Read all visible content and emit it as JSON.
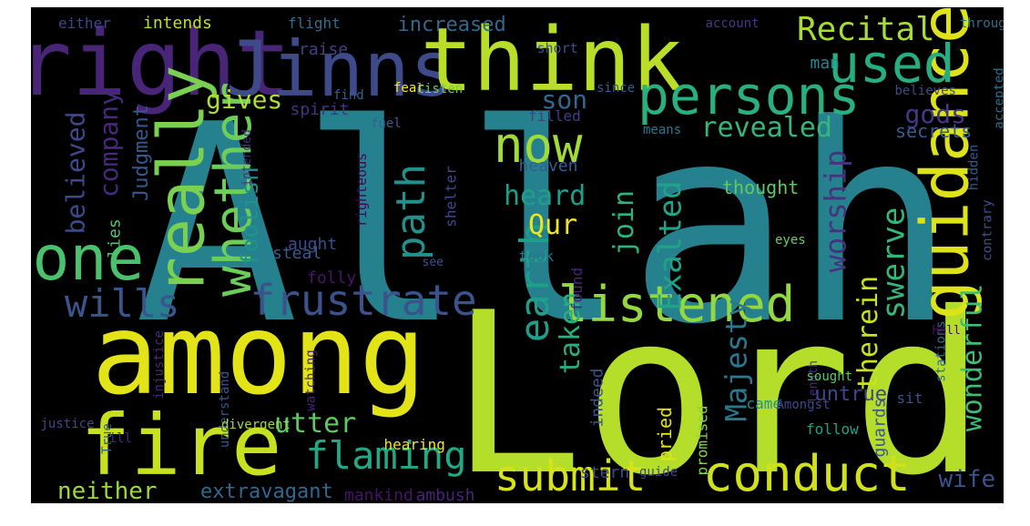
{
  "cloud": {
    "background": "#000000",
    "words": [
      {
        "text": "Allah",
        "color": "#26818e"
      },
      {
        "text": "Lord",
        "color": "#b5de2b"
      },
      {
        "text": "among",
        "color": "#e2e418"
      },
      {
        "text": "right",
        "color": "#482576"
      },
      {
        "text": "Jinns",
        "color": "#3e4a89"
      },
      {
        "text": "think",
        "color": "#b8de29"
      },
      {
        "text": "fire",
        "color": "#c7e020"
      },
      {
        "text": "guidance",
        "color": "#dde318"
      },
      {
        "text": "persons",
        "color": "#2ab07f"
      },
      {
        "text": "used",
        "color": "#26ad81"
      },
      {
        "text": "really",
        "color": "#7ad151"
      },
      {
        "text": "now",
        "color": "#a2da37"
      },
      {
        "text": "one",
        "color": "#4ac16d"
      },
      {
        "text": "whether",
        "color": "#6ccd5a"
      },
      {
        "text": "frustrate",
        "color": "#3b528b"
      },
      {
        "text": "listened",
        "color": "#93d741"
      },
      {
        "text": "conduct",
        "color": "#d0e11c"
      },
      {
        "text": "submit",
        "color": "#d8e219"
      },
      {
        "text": "flaming",
        "color": "#22a884"
      },
      {
        "text": "wills",
        "color": "#3a548c"
      },
      {
        "text": "earth",
        "color": "#1f9e89"
      },
      {
        "text": "path",
        "color": "#21918c"
      },
      {
        "text": "Recital",
        "color": "#a8db34"
      },
      {
        "text": "Exalted",
        "color": "#20a386"
      },
      {
        "text": "Majesty",
        "color": "#2a788e"
      },
      {
        "text": "swerve",
        "color": "#35b779"
      },
      {
        "text": "worship",
        "color": "#46337e"
      },
      {
        "text": "wonderful",
        "color": "#3dbc74"
      },
      {
        "text": "revealed",
        "color": "#35b779"
      },
      {
        "text": "utter",
        "color": "#5ec962"
      },
      {
        "text": "heard",
        "color": "#1f9e89"
      },
      {
        "text": "Qur",
        "color": "#f1e51d"
      },
      {
        "text": "join",
        "color": "#2eb37c"
      },
      {
        "text": "taken",
        "color": "#29af7f"
      },
      {
        "text": "therein",
        "color": "#cae11f"
      },
      {
        "text": "gods",
        "color": "#443983"
      },
      {
        "text": "gives",
        "color": "#b0dd2f"
      },
      {
        "text": "son",
        "color": "#31688e"
      },
      {
        "text": "believed",
        "color": "#3e4989"
      },
      {
        "text": "company",
        "color": "#472a7a"
      },
      {
        "text": "foolish",
        "color": "#20928c"
      },
      {
        "text": "neither",
        "color": "#9bd93c"
      },
      {
        "text": "wife",
        "color": "#3b528b"
      },
      {
        "text": "increased",
        "color": "#31688e"
      },
      {
        "text": "Judgment",
        "color": "#38588c"
      },
      {
        "text": "untrue",
        "color": "#3f4788"
      },
      {
        "text": "extravagant",
        "color": "#31688e"
      },
      {
        "text": "secrets",
        "color": "#365d8d"
      },
      {
        "text": "thought",
        "color": "#60ca60"
      },
      {
        "text": "heaven",
        "color": "#345e8d"
      },
      {
        "text": "spirit",
        "color": "#46327e"
      },
      {
        "text": "steal",
        "color": "#365c8d"
      },
      {
        "text": "aught",
        "color": "#3e4c8a"
      },
      {
        "text": "guards",
        "color": "#3b528b"
      },
      {
        "text": "indeed",
        "color": "#3a548c"
      },
      {
        "text": "stern",
        "color": "#3e4a89"
      },
      {
        "text": "raise",
        "color": "#424086"
      },
      {
        "text": "man",
        "color": "#24868e"
      },
      {
        "text": "mankind",
        "color": "#471365"
      },
      {
        "text": "ambush",
        "color": "#482475"
      },
      {
        "text": "filled",
        "color": "#433e85"
      },
      {
        "text": "found",
        "color": "#482677"
      },
      {
        "text": "took",
        "color": "#2c728e"
      },
      {
        "text": "came",
        "color": "#21908d"
      },
      {
        "text": "follow",
        "color": "#1fa188"
      },
      {
        "text": "sit",
        "color": "#3b528b"
      },
      {
        "text": "pried",
        "color": "#e2e418"
      },
      {
        "text": "promised",
        "color": "#87d549"
      },
      {
        "text": "hearing",
        "color": "#f1e51d"
      },
      {
        "text": "shelter",
        "color": "#3e4989"
      },
      {
        "text": "lies",
        "color": "#4ec36b"
      },
      {
        "text": "folly",
        "color": "#481668"
      },
      {
        "text": "intends",
        "color": "#bddf26"
      },
      {
        "text": "either",
        "color": "#3f4788"
      },
      {
        "text": "flight",
        "color": "#2e6f8e"
      },
      {
        "text": "short",
        "color": "#3b528b"
      },
      {
        "text": "fear",
        "color": "#fde725"
      },
      {
        "text": "listen",
        "color": "#6ece58"
      },
      {
        "text": "fuel",
        "color": "#355f8d"
      },
      {
        "text": "since",
        "color": "#345e8d"
      },
      {
        "text": "means",
        "color": "#2a788e"
      },
      {
        "text": "find",
        "color": "#355f8d"
      },
      {
        "text": "account",
        "color": "#443a83"
      },
      {
        "text": "throughout",
        "color": "#2d708e"
      },
      {
        "text": "believes",
        "color": "#3e4a89"
      },
      {
        "text": "accepted",
        "color": "#2c728e"
      },
      {
        "text": "hidden",
        "color": "#375b8d"
      },
      {
        "text": "contrary",
        "color": "#3b528b"
      },
      {
        "text": "stations",
        "color": "#2e6e8e"
      },
      {
        "text": "righteous",
        "color": "#450559"
      },
      {
        "text": "intended",
        "color": "#46307e"
      },
      {
        "text": "eyes",
        "color": "#6ccd5a"
      },
      {
        "text": "Hell",
        "color": "#471063"
      },
      {
        "text": "see",
        "color": "#3b528b"
      },
      {
        "text": "length",
        "color": "#472f7d"
      },
      {
        "text": "watching",
        "color": "#482475"
      },
      {
        "text": "understand",
        "color": "#3a548c"
      },
      {
        "text": "injustice",
        "color": "#482878"
      },
      {
        "text": "ill",
        "color": "#472c7a"
      },
      {
        "text": "True",
        "color": "#355e8d"
      },
      {
        "text": "justice",
        "color": "#3f4788"
      },
      {
        "text": "divergent",
        "color": "#9fda3a"
      },
      {
        "text": "sought",
        "color": "#5ac864"
      },
      {
        "text": "Amongst",
        "color": "#3f4889"
      },
      {
        "text": "guide",
        "color": "#404688"
      }
    ]
  }
}
